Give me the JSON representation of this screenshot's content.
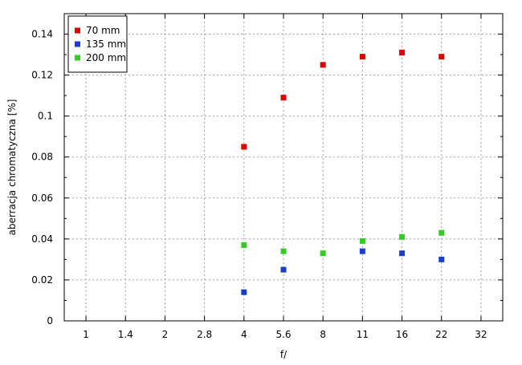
{
  "chart_data": {
    "type": "scatter",
    "title": "",
    "xlabel": "f/",
    "ylabel": "aberracja chromatyczna [%]",
    "x_categories": [
      "1",
      "1.4",
      "2",
      "2.8",
      "4",
      "5.6",
      "8",
      "11",
      "16",
      "22",
      "32"
    ],
    "ylim": [
      0,
      0.15
    ],
    "yticks": [
      "0",
      "0.02",
      "0.04",
      "0.06",
      "0.08",
      "0.1",
      "0.12",
      "0.14"
    ],
    "grid": true,
    "legend_position": "top-left",
    "series": [
      {
        "name": "70 mm",
        "color": "#e00000",
        "x": [
          "4",
          "5.6",
          "8",
          "11",
          "16",
          "22"
        ],
        "y": [
          0.085,
          0.109,
          0.125,
          0.129,
          0.131,
          0.129
        ]
      },
      {
        "name": "135 mm",
        "color": "#1a3fd0",
        "x": [
          "4",
          "5.6",
          "8",
          "11",
          "16",
          "22"
        ],
        "y": [
          0.014,
          0.025,
          null,
          0.034,
          0.033,
          0.03
        ]
      },
      {
        "name": "200 mm",
        "color": "#33cc22",
        "x": [
          "4",
          "5.6",
          "8",
          "11",
          "16",
          "22"
        ],
        "y": [
          0.037,
          0.034,
          0.033,
          0.039,
          0.041,
          0.043
        ]
      }
    ]
  }
}
